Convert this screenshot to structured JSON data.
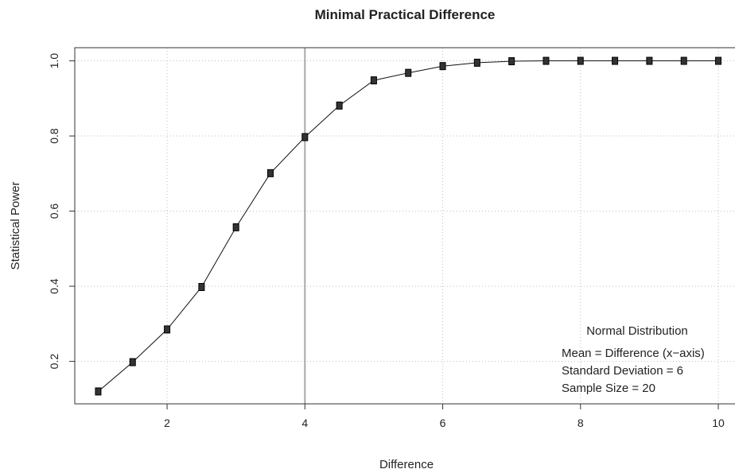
{
  "chart_data": {
    "type": "line",
    "title": "Minimal Practical Difference",
    "xlabel": "Difference",
    "ylabel": "Statistical Power",
    "xlim": [
      0.66,
      10.3
    ],
    "ylim": [
      0.087,
      1.035
    ],
    "grid": true,
    "x_ticks": [
      2,
      4,
      6,
      8,
      10
    ],
    "y_ticks": [
      0.2,
      0.4,
      0.6,
      0.8,
      1.0
    ],
    "x_tick_labels": [
      "2",
      "4",
      "6",
      "8",
      "10"
    ],
    "y_tick_labels": [
      "0.2",
      "0.4",
      "0.6",
      "0.8",
      "1.0"
    ],
    "vline_x": 4,
    "series": [
      {
        "x": [
          1.0,
          1.5,
          2.0,
          2.5,
          3.0,
          3.5,
          4.0,
          4.5,
          5.0,
          5.5,
          6.0,
          6.5,
          7.0,
          7.5,
          8.0,
          8.5,
          9.0,
          9.5,
          10.0
        ],
        "values": [
          0.12,
          0.198,
          0.285,
          0.398,
          0.557,
          0.701,
          0.797,
          0.881,
          0.948,
          0.968,
          0.986,
          0.995,
          0.999,
          1.0,
          1.0,
          1.0,
          1.0,
          1.0,
          1.0
        ]
      }
    ],
    "annotation": {
      "heading": "Normal Distribution",
      "lines": [
        "Mean = Difference (x−axis)",
        "Standard Deviation = 6",
        "Sample Size = 20"
      ]
    },
    "colors": {
      "line": "#111111",
      "marker_fill": "#333333",
      "vline": "#a9a9a9",
      "grid": "#bdbdbd"
    }
  }
}
